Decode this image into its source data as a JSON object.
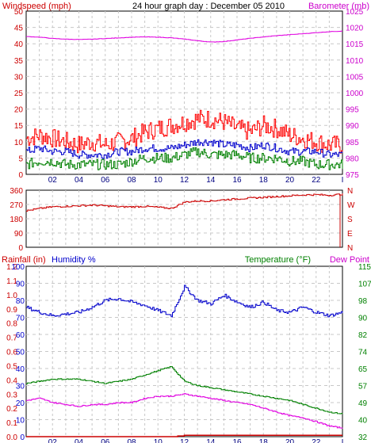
{
  "header": {
    "windspeed_label": "Windspeed (mph)",
    "title": "24 hour graph day : December 05 2010",
    "barometer_label": "Barometer (mb)"
  },
  "bottom_header": {
    "rainfall_label": "Rainfall (in)",
    "humidity_label": "Humidity %",
    "temperature_label": "Temperature (°F)",
    "dewpoint_label": "Dew Point"
  },
  "colors": {
    "wind_max": "#ff0000",
    "wind_avg": "#0000cc",
    "wind_min": "#008000",
    "barometer": "#e000e0",
    "direction": "#cc0000",
    "humidity": "#0000cc",
    "temperature": "#008000",
    "dewpoint": "#e000e0",
    "rainfall": "#cc0000",
    "grid": "#c8c8c8",
    "frame": "#000000"
  },
  "x_ticks": [
    "02",
    "04",
    "06",
    "08",
    "10",
    "12",
    "14",
    "16",
    "18",
    "20",
    "22",
    "I"
  ],
  "chart_data": [
    {
      "type": "line",
      "panel": "wind-barometer",
      "title": "24 hour graph day : December 05 2010",
      "y_left": {
        "label": "Windspeed (mph)",
        "ticks": [
          0,
          5,
          10,
          15,
          20,
          25,
          30,
          35,
          40,
          45,
          50
        ],
        "ylim": [
          0,
          50
        ]
      },
      "y_right": {
        "label": "Barometer (mb)",
        "ticks": [
          975,
          980,
          985,
          990,
          995,
          1000,
          1005,
          1010,
          1015,
          1020,
          1025
        ],
        "ylim": [
          975,
          1025
        ]
      },
      "x_hours": [
        0,
        1,
        2,
        3,
        4,
        5,
        6,
        7,
        8,
        9,
        10,
        11,
        12,
        13,
        14,
        15,
        16,
        17,
        18,
        19,
        20,
        21,
        22,
        23,
        24
      ],
      "series": [
        {
          "axis": "left",
          "values": [
            11,
            12,
            11,
            10,
            9,
            10,
            9,
            10,
            11,
            13,
            14,
            15,
            16,
            17,
            17,
            16,
            14,
            13,
            15,
            14,
            12,
            11,
            10,
            9,
            9
          ]
        },
        {
          "axis": "left",
          "values": [
            7,
            8,
            7,
            7,
            6,
            6,
            6,
            7,
            7,
            8,
            8,
            8,
            9,
            10,
            10,
            9,
            9,
            8,
            9,
            8,
            7,
            7,
            7,
            6,
            6
          ]
        },
        {
          "axis": "left",
          "values": [
            3,
            4,
            4,
            3,
            3,
            3,
            3,
            3,
            4,
            5,
            5,
            5,
            6,
            7,
            6,
            6,
            6,
            5,
            5,
            5,
            4,
            4,
            3,
            3,
            3
          ]
        },
        {
          "axis": "right",
          "values": [
            1017.2,
            1017.0,
            1016.6,
            1016.4,
            1016.3,
            1016.4,
            1016.6,
            1016.8,
            1017.0,
            1017.1,
            1017.0,
            1016.8,
            1016.4,
            1015.9,
            1015.5,
            1015.7,
            1016.2,
            1016.7,
            1017.1,
            1017.5,
            1017.8,
            1018.1,
            1018.4,
            1018.7,
            1018.9
          ]
        }
      ]
    },
    {
      "type": "line",
      "panel": "wind-direction",
      "y_left": {
        "ticks": [
          0,
          90,
          180,
          270,
          360
        ],
        "ylim": [
          0,
          360
        ]
      },
      "y_right_labels": [
        "N",
        "W",
        "S",
        "E",
        "N"
      ],
      "x_hours": [
        0,
        1,
        2,
        3,
        4,
        5,
        6,
        7,
        8,
        9,
        10,
        11,
        12,
        13,
        14,
        15,
        16,
        17,
        18,
        19,
        20,
        21,
        22,
        23,
        24
      ],
      "series": [
        {
          "values": [
            230,
            245,
            255,
            258,
            262,
            266,
            262,
            255,
            255,
            258,
            252,
            245,
            285,
            292,
            292,
            300,
            305,
            310,
            315,
            320,
            325,
            330,
            332,
            328,
            335
          ]
        }
      ]
    },
    {
      "type": "line",
      "panel": "rain-humidity-temperature",
      "y_rainfall": {
        "ticks": [
          0.0,
          0.1,
          0.2,
          0.3,
          0.4,
          0.5,
          0.6,
          0.7,
          0.8,
          0.9,
          1.0,
          1.1,
          1.2
        ],
        "ylim": [
          0.0,
          1.2
        ]
      },
      "y_humidity": {
        "ticks": [
          0,
          10,
          20,
          30,
          40,
          50,
          60,
          70,
          80,
          90,
          100
        ],
        "ylim": [
          0,
          100
        ]
      },
      "y_temperature": {
        "ticks": [
          32,
          40,
          49,
          57,
          65,
          74,
          82,
          90,
          98,
          107,
          115
        ],
        "ylim": [
          32,
          115
        ]
      },
      "x_hours": [
        0,
        1,
        2,
        3,
        4,
        5,
        6,
        7,
        8,
        9,
        10,
        11,
        12,
        13,
        14,
        15,
        16,
        17,
        18,
        19,
        20,
        21,
        22,
        23,
        24
      ],
      "series": [
        {
          "axis": "humidity",
          "values": [
            76,
            73,
            71,
            72,
            73,
            76,
            80,
            81,
            79,
            77,
            74,
            71,
            88,
            80,
            78,
            83,
            79,
            76,
            79,
            74,
            73,
            76,
            73,
            71,
            73
          ]
        },
        {
          "axis": "temperature",
          "values": [
            58,
            59,
            60,
            60,
            60,
            59,
            58,
            59,
            60,
            62,
            64,
            66,
            59,
            57,
            56,
            55,
            54,
            53,
            52,
            51,
            50,
            48,
            46,
            44,
            43
          ]
        },
        {
          "axis": "temperature",
          "values": [
            50,
            51,
            49,
            48,
            47,
            48,
            48,
            49,
            49,
            51,
            52,
            52,
            53,
            52,
            51,
            50,
            49,
            48,
            46,
            44,
            42,
            41,
            39,
            37,
            36
          ]
        },
        {
          "axis": "rainfall",
          "values": [
            0.0,
            0.0,
            0.0,
            0.0,
            0.0,
            0.0,
            0.0,
            0.0,
            0.0,
            0.0,
            0.0,
            0.0,
            0.01,
            0.01,
            0.01,
            0.01,
            0.01,
            0.01,
            0.01,
            0.01,
            0.01,
            0.01,
            0.01,
            0.01,
            0.01
          ]
        }
      ]
    }
  ]
}
